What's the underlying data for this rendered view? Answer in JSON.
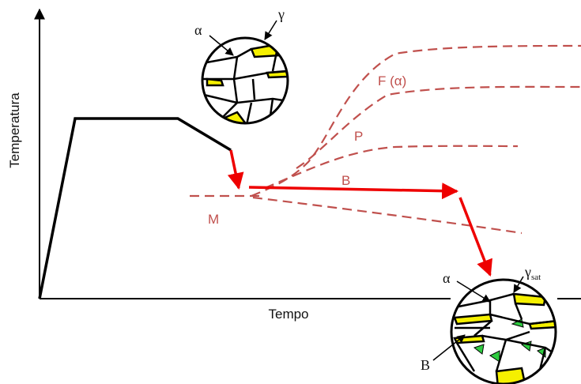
{
  "axes": {
    "y_label": "Temperatura",
    "x_label": "Tempo"
  },
  "curves": {
    "ferrite": "F (α)",
    "pearlite": "P",
    "bainite": "B",
    "martensite": "M"
  },
  "micrograph_start": {
    "alpha": "α",
    "gamma": "γ"
  },
  "micrograph_end": {
    "alpha": "α",
    "gamma": {
      "symbol": "γ",
      "subscript": "sat"
    },
    "bainite": "B"
  }
}
